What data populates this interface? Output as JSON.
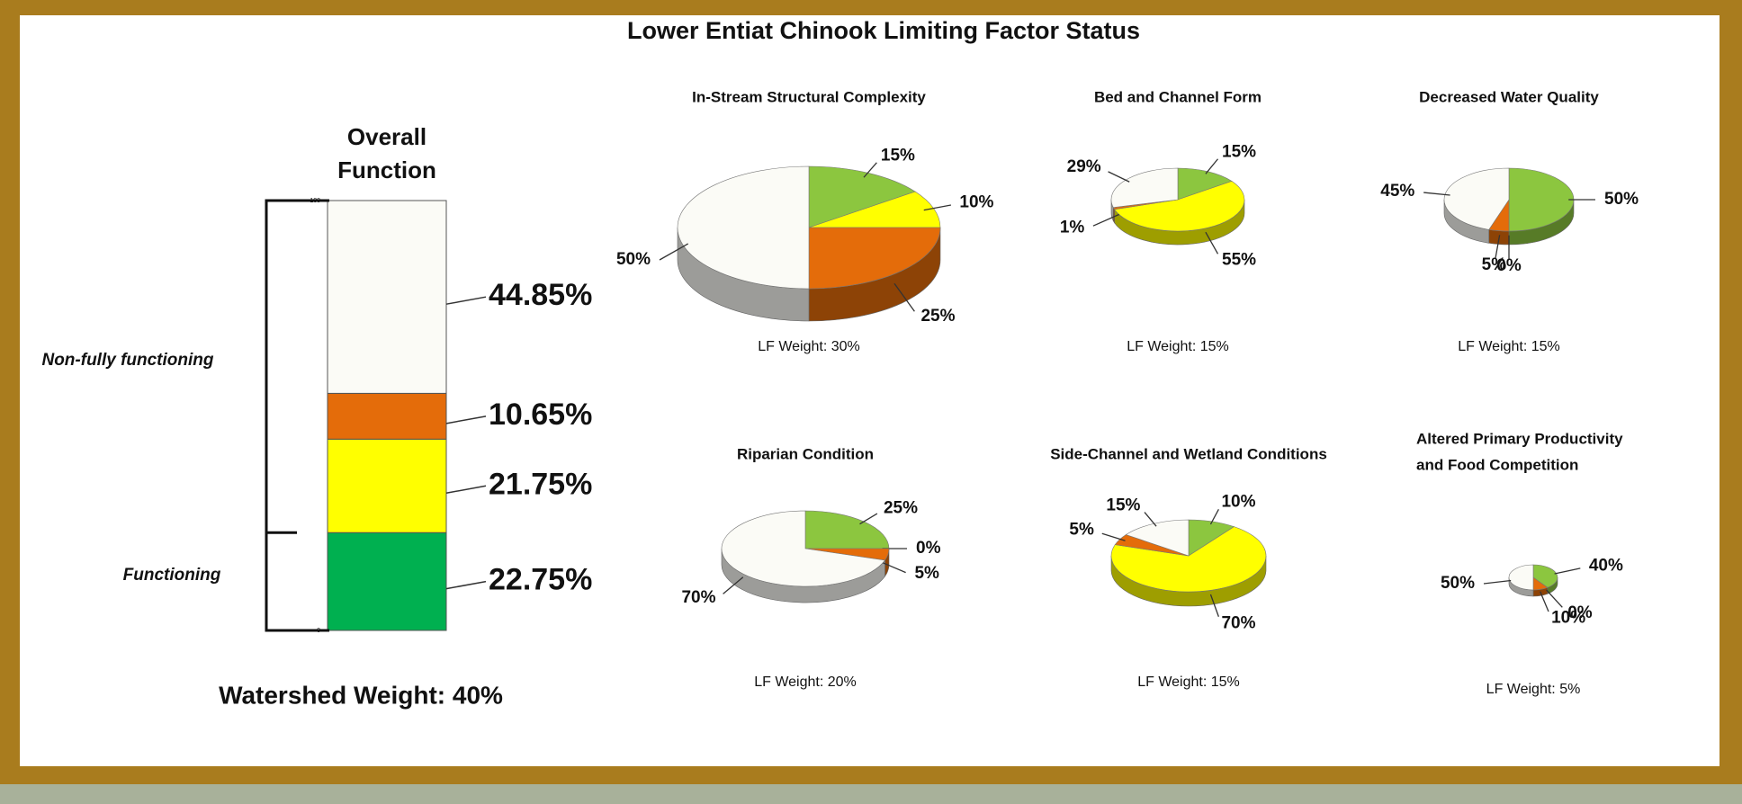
{
  "chart_data": [
    {
      "type": "bar",
      "title": "Lower Entiat Chinook Limiting Factor Status",
      "subtitle": [
        "Overall",
        "Function"
      ],
      "ylim": [
        0,
        100
      ],
      "yticks": [
        0,
        100
      ],
      "series": [
        {
          "color": "#00b050",
          "values": [
            22.75
          ],
          "value_labels": [
            "22.75%"
          ]
        },
        {
          "color": "#ffff00",
          "values": [
            21.75
          ],
          "value_labels": [
            "21.75%"
          ]
        },
        {
          "color": "#e46c0a",
          "values": [
            10.65
          ],
          "value_labels": [
            "10.65%"
          ]
        },
        {
          "color": "#fbfbf6",
          "values": [
            44.85
          ],
          "value_labels": [
            "44.85%"
          ]
        }
      ],
      "annotations": [
        "Non-fully functioning",
        "Functioning",
        "Watershed Weight:  40%"
      ]
    },
    {
      "type": "pie",
      "title": "In-Stream Structural Complexity",
      "note": "LF Weight:  30%",
      "values": [
        15,
        10,
        25,
        50
      ],
      "value_labels": [
        "15%",
        "10%",
        "25%",
        "50%"
      ],
      "colors": [
        "#8cc63f",
        "#ffff00",
        "#e46c0a",
        "#fbfbf6"
      ]
    },
    {
      "type": "pie",
      "title": "Bed and Channel Form",
      "note": "LF Weight:  15%",
      "values": [
        15,
        55,
        1,
        29
      ],
      "value_labels": [
        "15%",
        "55%",
        "1%",
        "29%"
      ],
      "colors": [
        "#8cc63f",
        "#ffff00",
        "#e46c0a",
        "#fbfbf6"
      ]
    },
    {
      "type": "pie",
      "title": "Decreased Water Quality",
      "note": "LF Weight:  15%",
      "values": [
        50,
        0,
        5,
        45
      ],
      "value_labels": [
        "50%",
        "0%",
        "5%",
        "45%"
      ],
      "colors": [
        "#8cc63f",
        "#ffff00",
        "#e46c0a",
        "#fbfbf6"
      ]
    },
    {
      "type": "pie",
      "title": "Riparian Condition",
      "note": "LF Weight:  20%",
      "values": [
        25,
        0,
        5,
        70
      ],
      "value_labels": [
        "25%",
        "0%",
        "5%",
        "70%"
      ],
      "colors": [
        "#8cc63f",
        "#ffff00",
        "#e46c0a",
        "#fbfbf6"
      ]
    },
    {
      "type": "pie",
      "title": "Side-Channel and Wetland Conditions",
      "note": "LF Weight:  15%",
      "values": [
        10,
        70,
        5,
        15
      ],
      "value_labels": [
        "10%",
        "70%",
        "5%",
        "15%"
      ],
      "colors": [
        "#8cc63f",
        "#ffff00",
        "#e46c0a",
        "#fbfbf6"
      ]
    },
    {
      "type": "pie",
      "title": [
        "Altered Primary Productivity",
        "and Food Competition"
      ],
      "note": "LF Weight:  5%",
      "values": [
        40,
        0,
        10,
        50
      ],
      "value_labels": [
        "40%",
        "0%",
        "10%",
        "50%"
      ],
      "colors": [
        "#8cc63f",
        "#ffff00",
        "#e46c0a",
        "#fbfbf6"
      ]
    }
  ]
}
